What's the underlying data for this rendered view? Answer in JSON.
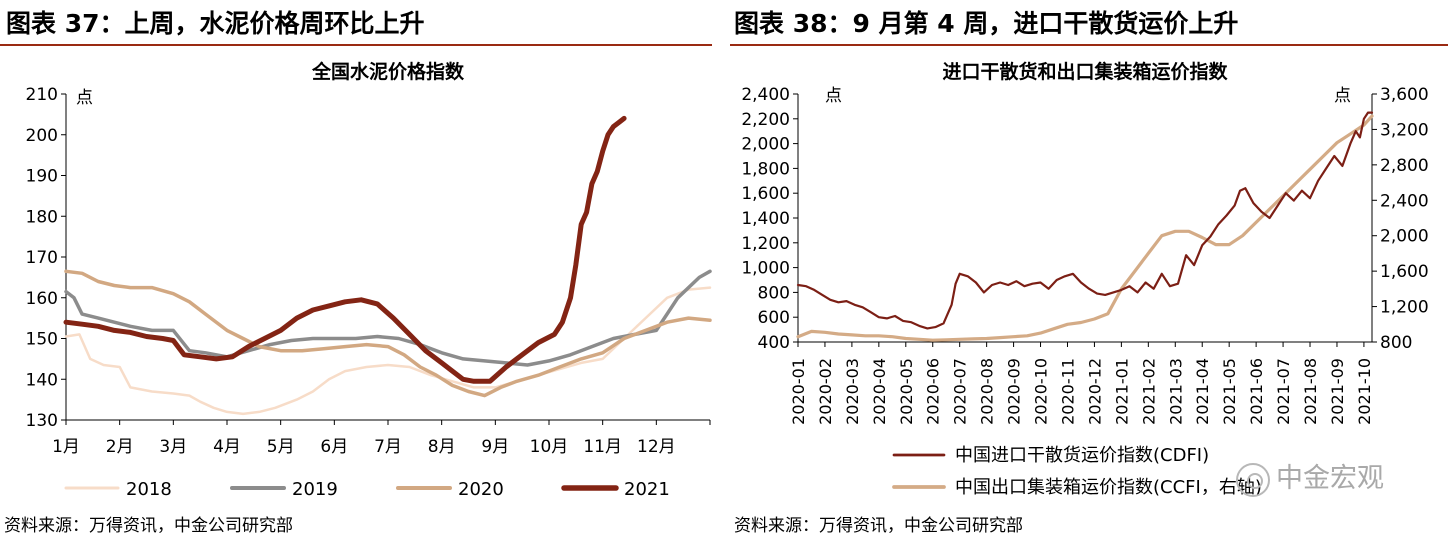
{
  "figures": {
    "left": {
      "heading": "图表 37：上周，水泥价格周环比上升",
      "source": "资料来源：万得资讯，中金公司研究部"
    },
    "right": {
      "heading": "图表 38：9 月第 4 周，进口干散货运价上升",
      "source": "资料来源：万得资讯，中金公司研究部"
    }
  },
  "watermark": {
    "text": "中金宏观",
    "icon": "wechat-icon"
  },
  "chart_data": [
    {
      "type": "line",
      "title": "全国水泥价格指数",
      "ylabel": "点",
      "xlabel": "",
      "ylim": [
        130,
        210
      ],
      "yticks": [
        130,
        140,
        150,
        160,
        170,
        180,
        190,
        200,
        210
      ],
      "x_domain": [
        0,
        12
      ],
      "categories": [
        "1月",
        "2月",
        "3月",
        "4月",
        "5月",
        "6月",
        "7月",
        "8月",
        "9月",
        "10月",
        "11月",
        "12月"
      ],
      "grid": false,
      "legend_position": "bottom",
      "series": [
        {
          "name": "2018",
          "color": "#f7dcc8",
          "width": 2.5,
          "x": [
            0,
            0.25,
            0.45,
            0.7,
            1.0,
            1.2,
            1.6,
            2.0,
            2.3,
            2.5,
            2.75,
            3.0,
            3.3,
            3.6,
            3.9,
            4.3,
            4.6,
            4.9,
            5.2,
            5.6,
            6.0,
            6.4,
            6.8,
            7.2,
            7.6,
            8.0,
            8.4,
            8.8,
            9.2,
            9.6,
            10.0,
            10.4,
            10.8,
            11.2,
            11.6,
            12.0
          ],
          "y": [
            150.5,
            151,
            145,
            143.5,
            143,
            138,
            137,
            136.5,
            136,
            134.5,
            133,
            132,
            131.5,
            132,
            133,
            135,
            137,
            140,
            142,
            143,
            143.5,
            143,
            141,
            139.5,
            138,
            138,
            139.5,
            141,
            142.5,
            144,
            145,
            150,
            155,
            160,
            162,
            162.5
          ]
        },
        {
          "name": "2019",
          "color": "#8c8c8c",
          "width": 3.5,
          "x": [
            0,
            0.15,
            0.3,
            0.6,
            0.9,
            1.2,
            1.6,
            2.0,
            2.3,
            2.6,
            3.0,
            3.4,
            3.8,
            4.2,
            4.6,
            5.0,
            5.4,
            5.8,
            6.2,
            6.6,
            7.0,
            7.4,
            7.8,
            8.2,
            8.6,
            9.0,
            9.4,
            9.8,
            10.2,
            10.6,
            11.0,
            11.4,
            11.8,
            12.0
          ],
          "y": [
            161.5,
            160,
            156,
            155,
            154,
            153,
            152,
            152,
            147,
            146.5,
            145.5,
            147,
            148.5,
            149.5,
            150,
            150,
            150,
            150.5,
            150,
            148.5,
            146.5,
            145,
            144.5,
            144,
            143.5,
            144.5,
            146,
            148,
            150,
            151,
            152,
            160,
            165,
            166.5
          ]
        },
        {
          "name": "2020",
          "color": "#d2a882",
          "width": 3.5,
          "x": [
            0,
            0.3,
            0.6,
            0.9,
            1.2,
            1.6,
            2.0,
            2.3,
            2.6,
            3.0,
            3.3,
            3.6,
            4.0,
            4.4,
            4.8,
            5.2,
            5.6,
            6.0,
            6.3,
            6.6,
            6.9,
            7.2,
            7.5,
            7.8,
            8.1,
            8.4,
            8.8,
            9.2,
            9.6,
            10.0,
            10.4,
            10.8,
            11.2,
            11.6,
            12.0
          ],
          "y": [
            166.5,
            166,
            164,
            163,
            162.5,
            162.5,
            161,
            159,
            156,
            152,
            150,
            148,
            147,
            147,
            147.5,
            148,
            148.5,
            148,
            146,
            143,
            141,
            138.5,
            137,
            136,
            138,
            139.5,
            141,
            143,
            145,
            146.5,
            150,
            152,
            154,
            155,
            154.5
          ]
        },
        {
          "name": "2021",
          "color": "#832414",
          "width": 5,
          "x": [
            0,
            0.3,
            0.6,
            0.9,
            1.2,
            1.5,
            1.8,
            2.0,
            2.2,
            2.5,
            2.8,
            3.1,
            3.4,
            3.7,
            4.0,
            4.3,
            4.6,
            4.9,
            5.2,
            5.5,
            5.8,
            6.1,
            6.4,
            6.7,
            7.0,
            7.2,
            7.4,
            7.6,
            7.9,
            8.2,
            8.5,
            8.8,
            9.1,
            9.25,
            9.4,
            9.5,
            9.6,
            9.7,
            9.8,
            9.9,
            10.0,
            10.1,
            10.2,
            10.3,
            10.4
          ],
          "y": [
            154,
            153.5,
            153,
            152,
            151.5,
            150.5,
            150,
            149.5,
            146,
            145.5,
            145,
            145.5,
            148,
            150,
            152,
            155,
            157,
            158,
            159,
            159.5,
            158.5,
            155,
            151,
            147,
            144,
            142,
            140,
            139.5,
            139.5,
            143,
            146,
            149,
            151,
            154,
            160,
            168,
            178,
            181,
            188,
            191,
            196,
            200,
            202,
            203,
            204
          ]
        }
      ]
    },
    {
      "type": "line",
      "title": "进口干散货和出口集装箱运价指数",
      "ylabel": "点",
      "y2label": "点",
      "xlabel": "",
      "ylim": [
        400,
        2400
      ],
      "y2lim": [
        800,
        3600
      ],
      "yticks": [
        "400",
        "600",
        "800",
        "1,000",
        "1,200",
        "1,400",
        "1,600",
        "1,800",
        "2,000",
        "2,200",
        "2,400"
      ],
      "y2ticks": [
        "800",
        "1,200",
        "1,600",
        "2,000",
        "2,400",
        "2,800",
        "3,200",
        "3,600"
      ],
      "x_domain": [
        0,
        21.3
      ],
      "categories": [
        "2020-01",
        "2020-02",
        "2020-03",
        "2020-04",
        "2020-05",
        "2020-06",
        "2020-07",
        "2020-08",
        "2020-09",
        "2020-10",
        "2020-11",
        "2020-12",
        "2021-01",
        "2021-02",
        "2021-03",
        "2021-04",
        "2021-05",
        "2021-06",
        "2021-07",
        "2021-08",
        "2021-09",
        "2021-10"
      ],
      "grid": false,
      "legend_position": "bottom",
      "series": [
        {
          "name": "中国进口干散货运价指数(CDFI)",
          "axis": "left",
          "color": "#7c1f15",
          "width": 2.2,
          "x": [
            0,
            0.3,
            0.6,
            0.9,
            1.2,
            1.5,
            1.8,
            2.1,
            2.4,
            2.7,
            3.0,
            3.3,
            3.6,
            3.9,
            4.2,
            4.5,
            4.8,
            5.1,
            5.4,
            5.7,
            5.85,
            6.0,
            6.3,
            6.6,
            6.9,
            7.2,
            7.5,
            7.8,
            8.1,
            8.4,
            8.7,
            9.0,
            9.3,
            9.6,
            9.9,
            10.2,
            10.5,
            10.8,
            11.1,
            11.4,
            11.7,
            12.0,
            12.3,
            12.6,
            12.9,
            13.2,
            13.5,
            13.8,
            14.1,
            14.4,
            14.7,
            15.0,
            15.3,
            15.6,
            15.9,
            16.2,
            16.4,
            16.6,
            16.9,
            17.2,
            17.5,
            17.8,
            18.1,
            18.4,
            18.7,
            19.0,
            19.3,
            19.6,
            19.9,
            20.2,
            20.5,
            20.7,
            20.85,
            21.0,
            21.15,
            21.3
          ],
          "y": [
            860,
            850,
            820,
            780,
            740,
            720,
            730,
            700,
            680,
            640,
            600,
            590,
            610,
            570,
            560,
            530,
            510,
            520,
            550,
            700,
            870,
            950,
            930,
            880,
            800,
            860,
            880,
            860,
            890,
            850,
            870,
            880,
            830,
            900,
            930,
            950,
            880,
            830,
            790,
            780,
            800,
            820,
            850,
            800,
            880,
            830,
            950,
            850,
            870,
            1100,
            1020,
            1180,
            1250,
            1350,
            1420,
            1500,
            1620,
            1640,
            1520,
            1450,
            1400,
            1500,
            1600,
            1540,
            1620,
            1560,
            1700,
            1800,
            1900,
            1820,
            2000,
            2100,
            2050,
            2200,
            2250,
            2250
          ]
        },
        {
          "name": "中国出口集装箱运价指数(CCFI，右轴)",
          "axis": "right",
          "color": "#d4ab86",
          "width": 3.2,
          "x": [
            0,
            0.5,
            1.0,
            1.5,
            2.0,
            2.5,
            3.0,
            3.5,
            4.0,
            4.5,
            5.0,
            5.5,
            6.0,
            6.5,
            7.0,
            7.5,
            8.0,
            8.5,
            9.0,
            9.5,
            10.0,
            10.5,
            11.0,
            11.5,
            12.0,
            12.5,
            13.0,
            13.5,
            14.0,
            14.5,
            15.0,
            15.5,
            16.0,
            16.5,
            17.0,
            17.5,
            18.0,
            18.5,
            19.0,
            19.5,
            20.0,
            20.5,
            21.0,
            21.3
          ],
          "y": [
            860,
            920,
            910,
            890,
            880,
            870,
            870,
            860,
            840,
            830,
            820,
            825,
            830,
            835,
            840,
            850,
            860,
            870,
            900,
            950,
            1000,
            1020,
            1060,
            1120,
            1400,
            1600,
            1800,
            2000,
            2050,
            2050,
            1980,
            1900,
            1900,
            2000,
            2150,
            2300,
            2450,
            2600,
            2750,
            2900,
            3050,
            3150,
            3250,
            3350
          ]
        }
      ]
    }
  ]
}
